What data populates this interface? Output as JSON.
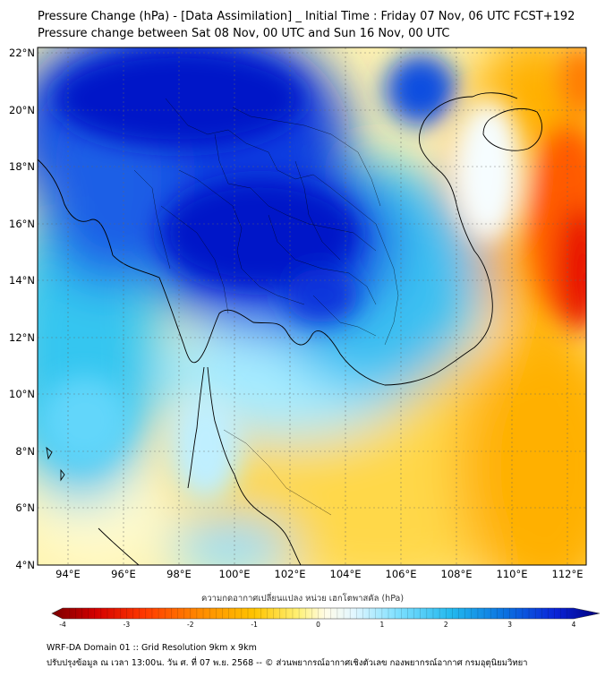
{
  "title_line1": "Pressure Change (hPa) - [Data Assimilation] _ Initial Time : Friday 07 Nov, 06 UTC FCST+192",
  "title_line2": "Pressure change between Sat 08 Nov, 00 UTC and Sun 16 Nov, 00 UTC",
  "lat_labels": [
    "22°N",
    "20°N",
    "18°N",
    "16°N",
    "14°N",
    "12°N",
    "10°N",
    "8°N",
    "6°N",
    "4°N"
  ],
  "lon_labels": [
    "94°E",
    "96°E",
    "98°E",
    "100°E",
    "102°E",
    "104°E",
    "106°E",
    "108°E",
    "110°E",
    "112°E"
  ],
  "colorbar": {
    "title": "ความกดอากาศเปลี่ยนแปลง หน่วย เฮกโตพาสคัล (hPa)",
    "ticks": [
      "-4",
      "-3",
      "-2",
      "-1",
      "0",
      "1",
      "2",
      "3",
      "4"
    ],
    "range": [
      -4,
      4
    ],
    "colors": [
      "#7a0000",
      "#d40000",
      "#ff3a00",
      "#ff8a00",
      "#ffc400",
      "#fff176",
      "#fffce8",
      "#e3f7ff",
      "#7fe0ff",
      "#22b8ee",
      "#0a6fe0",
      "#0a23d8",
      "#00007a"
    ]
  },
  "footer_line1": "WRF-DA Domain 01 :: Grid Resolution 9km x 9km",
  "footer_line2": "ปรับปรุงข้อมูล ณ เวลา 13:00น. วัน ศ. ที่ 07 พ.ย. 2568 -- © ส่วนพยากรณ์อากาศเชิงตัวเลข กองพยากรณ์อากาศ กรมอุตุนิยมวิทยา"
}
